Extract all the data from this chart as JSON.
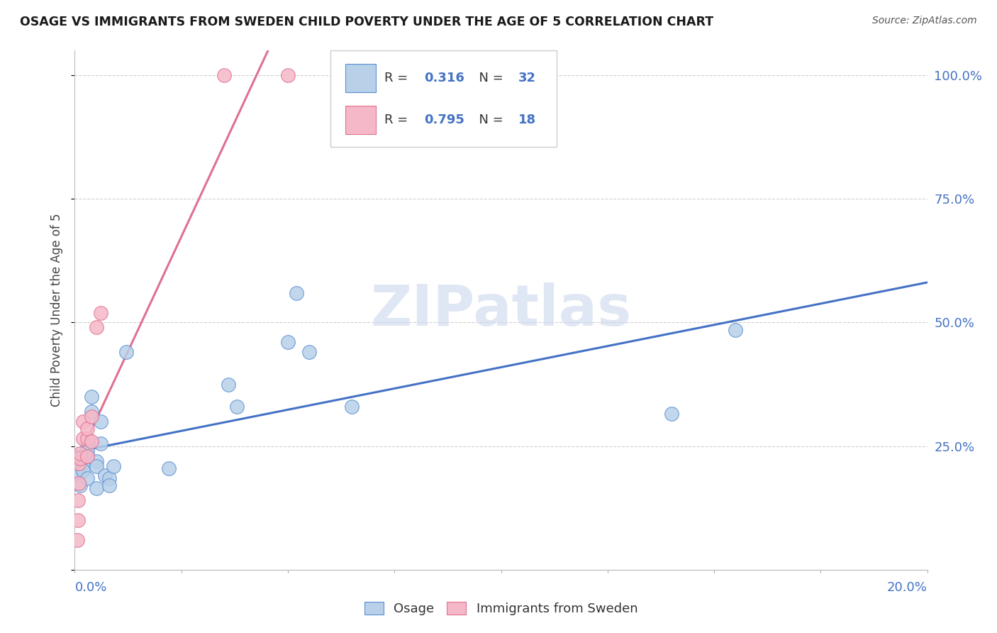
{
  "title": "OSAGE VS IMMIGRANTS FROM SWEDEN CHILD POVERTY UNDER THE AGE OF 5 CORRELATION CHART",
  "source": "Source: ZipAtlas.com",
  "ylabel": "Child Poverty Under the Age of 5",
  "legend_bottom": [
    "Osage",
    "Immigrants from Sweden"
  ],
  "legend_top": {
    "blue_r": "0.316",
    "blue_n": "32",
    "pink_r": "0.795",
    "pink_n": "18"
  },
  "watermark": "ZIPatlas",
  "blue_fill": "#b8d0e8",
  "pink_fill": "#f5b8c8",
  "blue_edge": "#5b8fd4",
  "pink_edge": "#e07090",
  "blue_line": "#4472c4",
  "pink_line": "#e07090",
  "title_color": "#1a1a1a",
  "axis_color": "#4472c4",
  "grid_color": "#d0d0d0",
  "source_color": "#555555",
  "watermark_color": "#ccd8ee",
  "osage_x": [
    0.0008,
    0.0008,
    0.0009,
    0.001,
    0.0012,
    0.002,
    0.002,
    0.003,
    0.003,
    0.003,
    0.003,
    0.004,
    0.004,
    0.005,
    0.005,
    0.005,
    0.006,
    0.006,
    0.007,
    0.008,
    0.008,
    0.009,
    0.012,
    0.022,
    0.036,
    0.038,
    0.05,
    0.052,
    0.055,
    0.065,
    0.14,
    0.155
  ],
  "osage_y": [
    0.22,
    0.2,
    0.215,
    0.195,
    0.17,
    0.215,
    0.2,
    0.25,
    0.24,
    0.23,
    0.185,
    0.35,
    0.32,
    0.22,
    0.21,
    0.165,
    0.3,
    0.255,
    0.19,
    0.185,
    0.17,
    0.21,
    0.44,
    0.205,
    0.375,
    0.33,
    0.46,
    0.56,
    0.44,
    0.33,
    0.315,
    0.485
  ],
  "sweden_x": [
    0.0006,
    0.0007,
    0.0008,
    0.0009,
    0.001,
    0.0012,
    0.0013,
    0.002,
    0.002,
    0.003,
    0.003,
    0.003,
    0.004,
    0.004,
    0.005,
    0.006,
    0.035,
    0.05
  ],
  "sweden_y": [
    0.06,
    0.1,
    0.14,
    0.175,
    0.215,
    0.225,
    0.235,
    0.265,
    0.3,
    0.23,
    0.265,
    0.285,
    0.31,
    0.26,
    0.49,
    0.52,
    1.0,
    1.0
  ],
  "xmin": 0.0,
  "xmax": 0.2,
  "ymin": 0.0,
  "ymax": 1.05,
  "xtick_positions": [
    0.0,
    0.025,
    0.05,
    0.075,
    0.1,
    0.125,
    0.15,
    0.175,
    0.2
  ],
  "ytick_positions": [
    0.0,
    0.25,
    0.5,
    0.75,
    1.0
  ],
  "ytick_labels_right": [
    "",
    "25.0%",
    "50.0%",
    "75.0%",
    "100.0%"
  ]
}
